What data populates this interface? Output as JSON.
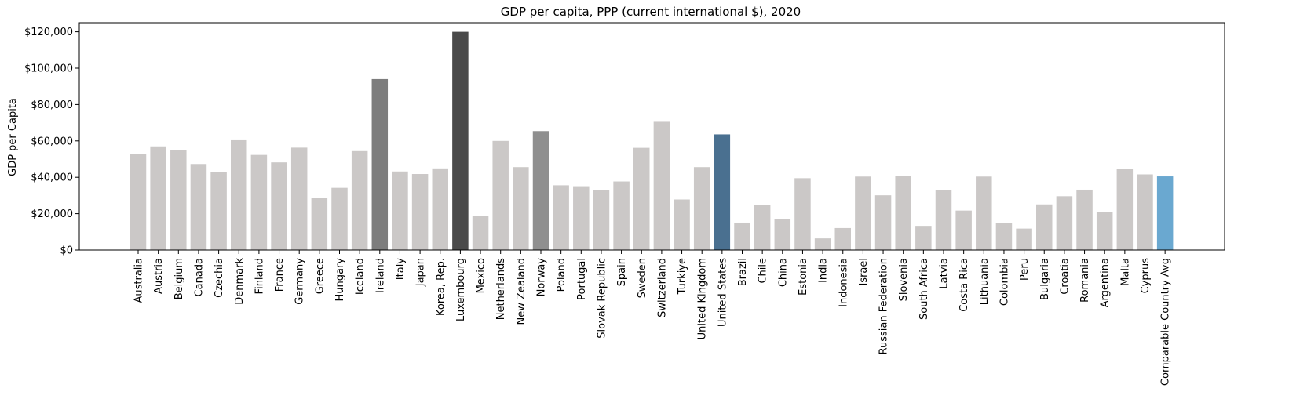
{
  "chart_data": {
    "type": "bar",
    "title": "GDP per capita, PPP (current international $), 2020",
    "xlabel": "",
    "ylabel": "GDP per Capita",
    "ylim": [
      0,
      125000
    ],
    "yticks": [
      {
        "value": 0,
        "label": "$0"
      },
      {
        "value": 20000,
        "label": "$20,000"
      },
      {
        "value": 40000,
        "label": "$40,000"
      },
      {
        "value": 60000,
        "label": "$60,000"
      },
      {
        "value": 80000,
        "label": "$80,000"
      },
      {
        "value": 100000,
        "label": "$100,000"
      },
      {
        "value": 120000,
        "label": "$120,000"
      }
    ],
    "grid": false,
    "categories": [
      "Australia",
      "Austria",
      "Belgium",
      "Canada",
      "Czechia",
      "Denmark",
      "Finland",
      "France",
      "Germany",
      "Greece",
      "Hungary",
      "Iceland",
      "Ireland",
      "Italy",
      "Japan",
      "Korea, Rep.",
      "Luxembourg",
      "Mexico",
      "Netherlands",
      "New Zealand",
      "Norway",
      "Poland",
      "Portugal",
      "Slovak Republic",
      "Spain",
      "Sweden",
      "Switzerland",
      "Turkiye",
      "United Kingdom",
      "United States",
      "Brazil",
      "Chile",
      "China",
      "Estonia",
      "India",
      "Indonesia",
      "Israel",
      "Russian Federation",
      "Slovenia",
      "South Africa",
      "Latvia",
      "Costa Rica",
      "Lithuania",
      "Colombia",
      "Peru",
      "Bulgaria",
      "Croatia",
      "Romania",
      "Argentina",
      "Malta",
      "Cyprus",
      "Comparable Country Avg"
    ],
    "values": [
      53000,
      57000,
      54800,
      47300,
      42800,
      60800,
      52300,
      48200,
      56300,
      28500,
      34200,
      54400,
      94000,
      43200,
      41800,
      44900,
      120000,
      18800,
      60000,
      45600,
      65400,
      35600,
      35100,
      33000,
      37700,
      56200,
      70500,
      27800,
      45600,
      63600,
      15100,
      24900,
      17200,
      39500,
      6400,
      12100,
      40400,
      30100,
      40800,
      13300,
      33000,
      21700,
      40400,
      15000,
      11800,
      25100,
      29600,
      33200,
      20700,
      44800,
      41600,
      40500
    ],
    "colors": {
      "default": "#cbc8c7",
      "Ireland": "#7d7d7d",
      "Luxembourg": "#4a4a4a",
      "Norway": "#8f8f8f",
      "United States": "#4a7090",
      "Comparable Country Avg": "#6aa8d0"
    }
  }
}
